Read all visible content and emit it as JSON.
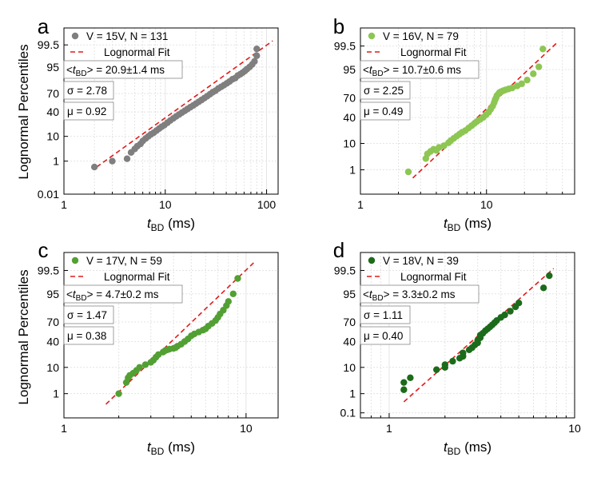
{
  "figure": {
    "ylabel": "Lognormal Percentiles",
    "xlabel_main": "t",
    "xlabel_sub": "BD",
    "xlabel_unit": " (ms)",
    "legend_fit": "Lognormal Fit",
    "mean_prefix_open": "<",
    "mean_prefix_t": "t",
    "mean_prefix_sub": "BD",
    "mean_prefix_close": "> = "
  },
  "chart_data": [
    {
      "panel": "a",
      "type": "scatter",
      "scale": "log-x / lognormal-probability-y",
      "color": "#7f7f7f",
      "fit_color": "#e01b1b",
      "xlim": [
        1,
        130
      ],
      "ylim": [
        0.01,
        99.95
      ],
      "xticks": [
        1,
        10,
        100
      ],
      "xtick_labels": [
        "1",
        "10",
        "100"
      ],
      "yticks": [
        0.01,
        1,
        10,
        40,
        70,
        95,
        99.5
      ],
      "ytick_labels": [
        "0.01",
        "1",
        "10",
        "40",
        "70",
        "95",
        "99.5"
      ],
      "legend_series": "V = 15V, N = 131",
      "mean_value": "20.9±1.4 ms",
      "sigma_label": "σ = 2.78",
      "mu_label": "μ = 0.92",
      "fit": {
        "x": [
          2.1,
          115
        ],
        "y": [
          0.5,
          99.7
        ]
      },
      "points": {
        "x": [
          2.0,
          3.0,
          4.2,
          4.6,
          5.0,
          5.3,
          5.7,
          6.0,
          6.4,
          6.8,
          7.2,
          7.7,
          8.2,
          8.7,
          9.2,
          9.8,
          10.5,
          11.2,
          12.0,
          12.8,
          13.7,
          14.6,
          15.6,
          16.6,
          17.7,
          18.9,
          20.1,
          21.4,
          22.8,
          24.3,
          25.9,
          27.6,
          29.4,
          31.3,
          33.4,
          35.6,
          38.0,
          40.5,
          43.2,
          46.0,
          49.0,
          52.0,
          55.0,
          58.0,
          61.0,
          64.0,
          68.0,
          72.0,
          76.0,
          80.0,
          80.0
        ],
        "y": [
          0.5,
          1.0,
          1.3,
          2.5,
          3.5,
          4.5,
          5.5,
          7.0,
          8.5,
          10,
          11.5,
          13,
          15,
          17,
          19,
          21,
          24,
          27,
          30,
          33,
          36,
          39,
          42,
          45,
          48,
          51,
          54,
          57,
          60,
          63,
          66,
          69,
          72,
          74,
          77,
          79,
          81,
          83,
          85,
          87,
          88,
          90,
          91,
          92,
          93,
          94,
          95,
          96,
          97,
          98.3,
          99.2
        ]
      }
    },
    {
      "panel": "b",
      "type": "scatter",
      "scale": "log-x / lognormal-probability-y",
      "color": "#8dc653",
      "fit_color": "#e01b1b",
      "xlim": [
        1,
        50
      ],
      "ylim": [
        0.05,
        99.95
      ],
      "xticks": [
        1,
        10
      ],
      "xtick_labels": [
        "1",
        "10"
      ],
      "yticks": [
        1,
        10,
        40,
        70,
        95,
        99.5
      ],
      "ytick_labels": [
        "1",
        "10",
        "40",
        "70",
        "95",
        "99.5"
      ],
      "legend_series": "V = 16V, N = 79",
      "mean_value": "10.7±0.6 ms",
      "sigma_label": "σ = 2.25",
      "mu_label": "μ = 0.49",
      "fit": {
        "x": [
          2.6,
          37
        ],
        "y": [
          0.4,
          99.7
        ]
      },
      "points": {
        "x": [
          2.4,
          3.3,
          3.4,
          3.6,
          3.8,
          4.0,
          4.2,
          4.6,
          5.0,
          5.2,
          5.5,
          5.8,
          6.1,
          6.4,
          6.8,
          7.2,
          7.6,
          8.0,
          8.4,
          8.9,
          9.4,
          9.9,
          10.4,
          10.8,
          11.2,
          11.5,
          11.7,
          11.9,
          12.1,
          12.4,
          12.7,
          13.1,
          13.6,
          14.2,
          15.0,
          16.0,
          17.5,
          19.0,
          21.0,
          23.5,
          26.0,
          28.0
        ],
        "y": [
          0.8,
          3.0,
          4.5,
          5.5,
          6.5,
          6.0,
          7.5,
          8.5,
          10.5,
          12,
          14,
          16,
          18,
          20,
          22,
          25,
          28,
          31,
          34,
          37,
          40,
          44,
          48,
          53,
          58,
          63,
          67,
          70,
          73,
          75,
          77,
          78,
          79,
          80,
          81,
          82,
          84,
          86,
          89,
          93,
          96,
          99.3
        ]
      }
    },
    {
      "panel": "c",
      "type": "scatter",
      "scale": "log-x / lognormal-probability-y",
      "color": "#52a033",
      "fit_color": "#e01b1b",
      "xlim": [
        1,
        15
      ],
      "ylim": [
        0.05,
        99.95
      ],
      "xticks": [
        1,
        10
      ],
      "xtick_labels": [
        "1",
        "10"
      ],
      "yticks": [
        1,
        10,
        40,
        70,
        95,
        99.5
      ],
      "ytick_labels": [
        "1",
        "10",
        "40",
        "70",
        "95",
        "99.5"
      ],
      "legend_series": "V = 17V, N = 59",
      "mean_value": "4.7±0.2 ms",
      "sigma_label": "σ = 1.47",
      "mu_label": "μ = 0.38",
      "fit": {
        "x": [
          1.7,
          11
        ],
        "y": [
          0.3,
          99.8
        ]
      },
      "points": {
        "x": [
          2.0,
          2.2,
          2.25,
          2.3,
          2.4,
          2.5,
          2.6,
          2.8,
          3.0,
          3.1,
          3.2,
          3.3,
          3.5,
          3.6,
          3.7,
          3.8,
          4.0,
          4.1,
          4.2,
          4.4,
          4.6,
          4.8,
          5.0,
          5.2,
          5.5,
          5.8,
          6.0,
          6.2,
          6.5,
          6.8,
          7.0,
          7.2,
          7.5,
          7.8,
          8.0,
          8.5,
          9.0
        ],
        "y": [
          1.0,
          3.0,
          4.5,
          5.5,
          6.5,
          8,
          10,
          12,
          14,
          16,
          19,
          22,
          25,
          27,
          28,
          29,
          30,
          31,
          33,
          36,
          40,
          44,
          49,
          52,
          55,
          58,
          60,
          64,
          68,
          72,
          76,
          80,
          84,
          88,
          91,
          95,
          98.8
        ]
      }
    },
    {
      "panel": "d",
      "type": "scatter",
      "scale": "log-x / lognormal-probability-y",
      "color": "#1b6b1b",
      "fit_color": "#e01b1b",
      "xlim": [
        0.7,
        10
      ],
      "ylim": [
        0.05,
        99.95
      ],
      "xticks": [
        1,
        10
      ],
      "xtick_labels": [
        "1",
        "10"
      ],
      "yticks": [
        0.1,
        1,
        10,
        40,
        70,
        95,
        99.5
      ],
      "ytick_labels": [
        "0.1",
        "1",
        "10",
        "40",
        "70",
        "95",
        "99.5"
      ],
      "legend_series": "V = 18V, N = 39",
      "mean_value": "3.3±0.2 ms",
      "sigma_label": "σ = 1.11",
      "mu_label": "μ = 0.40",
      "fit": {
        "x": [
          1.2,
          7.7
        ],
        "y": [
          0.4,
          99.6
        ]
      },
      "points": {
        "x": [
          1.2,
          1.2,
          1.3,
          1.8,
          2.0,
          2.0,
          2.2,
          2.4,
          2.5,
          2.5,
          2.7,
          2.8,
          2.9,
          3.0,
          3.0,
          3.1,
          3.1,
          3.2,
          3.3,
          3.4,
          3.5,
          3.6,
          3.7,
          3.8,
          4.0,
          4.2,
          4.5,
          4.8,
          5.0,
          6.8,
          7.3
        ],
        "y": [
          1.5,
          3.0,
          4.5,
          8.5,
          10,
          12,
          15,
          18,
          20,
          24,
          28,
          31,
          35,
          38,
          42,
          46,
          50,
          53,
          57,
          60,
          63,
          66,
          69,
          72,
          76,
          79,
          83,
          87,
          90,
          97,
          99.1
        ]
      }
    }
  ]
}
